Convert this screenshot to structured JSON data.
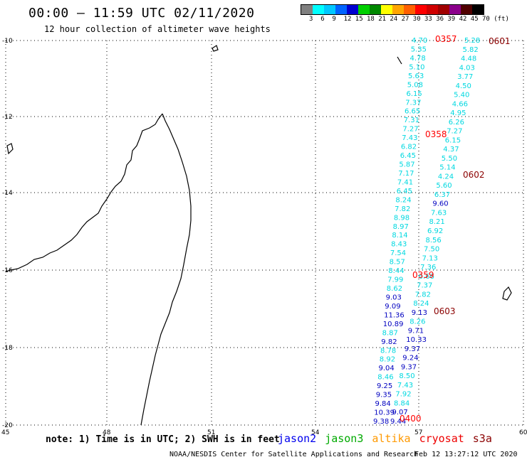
{
  "header": {
    "title": "00:00 – 11:59 UTC 02/11/2020",
    "subtitle": "12 hour collection of altimeter wave heights"
  },
  "legend": {
    "colors": [
      "#808080",
      "#00ffff",
      "#00c8ff",
      "#0064ff",
      "#0000d0",
      "#00d000",
      "#008800",
      "#ffff00",
      "#ffa500",
      "#ff6000",
      "#ff0000",
      "#d00000",
      "#a00000",
      "#8b008b",
      "#500000",
      "#000000"
    ],
    "labels": [
      "3",
      "6",
      "9",
      "12",
      "15",
      "18",
      "21",
      "24",
      "27",
      "30",
      "33",
      "36",
      "39",
      "42",
      "45",
      "70",
      "(ft)"
    ]
  },
  "axes": {
    "lat_labels": [
      "-10",
      "-12",
      "-14",
      "-16",
      "-18",
      "-20"
    ],
    "lon_labels": [
      "45",
      "48",
      "51",
      "54",
      "57",
      "60"
    ]
  },
  "times": [
    {
      "text": "0357",
      "color": "#ff0000"
    },
    {
      "text": "0601",
      "color": "#8b0000"
    },
    {
      "text": "0358",
      "color": "#ff0000"
    },
    {
      "text": "0602",
      "color": "#8b0000"
    },
    {
      "text": "0359",
      "color": "#ff0000"
    },
    {
      "text": "0603",
      "color": "#8b0000"
    },
    {
      "text": "0400",
      "color": "#ff0000"
    }
  ],
  "tracks": {
    "track_a": [
      "4.70",
      "5.35",
      "4.78",
      "5.10",
      "5.63",
      "5.08",
      "6.15",
      "7.37",
      "6.65",
      "7.31",
      "7.27",
      "7.43",
      "6.82",
      "6.45",
      "5.87",
      "7.17",
      "7.41",
      "6.45",
      "8.24",
      "7.82",
      "8.98",
      "8.97",
      "8.14",
      "8.43",
      "7.54",
      "8.57",
      "8.44",
      "7.99",
      "8.62",
      "9.03",
      "9.09",
      "11.36",
      "10.89",
      "8.87",
      "9.82",
      "8.78",
      "8.92",
      "9.04",
      "8.46",
      "9.25",
      "9.35",
      "9.84",
      "10.39",
      "9.38"
    ],
    "track_b": [
      "5.28",
      "5.82",
      "4.48",
      "4.03",
      "3.77",
      "4.50",
      "5.40",
      "4.66",
      "4.95",
      "6.26",
      "7.27",
      "6.15",
      "4.37",
      "5.50",
      "5.14",
      "4.24",
      "5.60",
      "6.37",
      "9.60",
      "7.63",
      "8.21",
      "6.92",
      "8.56",
      "7.50",
      "7.13",
      "7.36",
      "6.66",
      "7.37",
      "7.82",
      "8.24",
      "9.13",
      "8.26",
      "9.71",
      "10.33",
      "9.37",
      "9.24",
      "9.37",
      "8.50",
      "7.43",
      "7.92",
      "8.84",
      "9.07",
      "9.44"
    ]
  },
  "footer": {
    "note": "note: 1) Time is in UTC; 2) SWH is in feet",
    "satellites": [
      {
        "name": "jason2",
        "color": "#0000ee"
      },
      {
        "name": "jason3",
        "color": "#00aa00"
      },
      {
        "name": "altika",
        "color": "#ff9900"
      },
      {
        "name": "cryosat",
        "color": "#ee0000"
      },
      {
        "name": "s3a",
        "color": "#8b0000"
      }
    ],
    "credit": "NOAA/NESDIS Center for Satellite Applications and Research",
    "date": "Feb 12 13:27:12 UTC 2020"
  }
}
